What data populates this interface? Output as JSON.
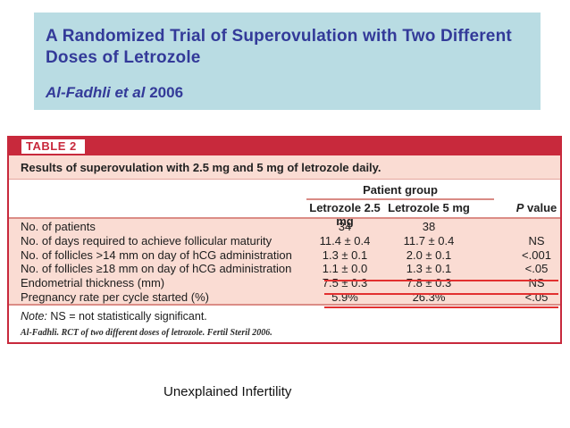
{
  "header": {
    "title_line1": "A Randomized Trial of Superovulation with Two Different",
    "title_line2": "Doses of Letrozole",
    "citation_authors": "Al-Fadhli et al",
    "citation_year": "2006",
    "bg_color": "#b9dce3",
    "text_color": "#333a99"
  },
  "table": {
    "label": "TABLE 2",
    "caption": "Results of superovulation with 2.5 mg and 5 mg of letrozole daily.",
    "group_header": "Patient group",
    "columns": [
      "Letrozole 2.5 mg",
      "Letrozole 5 mg"
    ],
    "p_column_italic": "P",
    "p_column_rest": " value",
    "rows": [
      {
        "label": "No. of patients",
        "letrozole25": "34",
        "letrozole5": "38",
        "p": ""
      },
      {
        "label": "No. of days required to achieve follicular maturity",
        "letrozole25": "11.4 ± 0.4",
        "letrozole5": "11.7 ± 0.4",
        "p": "NS"
      },
      {
        "label": "No. of follicles >14 mm on day of hCG administration",
        "letrozole25": "1.3 ± 0.1",
        "letrozole5": "2.0 ± 0.1",
        "p": "<.001"
      },
      {
        "label": "No. of follicles ≥18 mm on day of hCG administration",
        "letrozole25": "1.1 ± 0.0",
        "letrozole5": "1.3 ± 0.1",
        "p": "<.05"
      },
      {
        "label": "Endometrial thickness (mm)",
        "letrozole25": "7.5 ± 0.3",
        "letrozole5": "7.8 ± 0.3",
        "p": "NS"
      },
      {
        "label": "Pregnancy rate per cycle started (%)",
        "letrozole25": "5.9%",
        "letrozole5": "26.3%",
        "p": "<.05"
      }
    ],
    "note_label": "Note:",
    "note_text": " NS = not statistically significant.",
    "source": "Al-Fadhli. RCT of two different doses of letrozole. Fertil Steril 2006.",
    "colors": {
      "bar_red": "#c8293c",
      "row_pink": "#fadcd3",
      "separator_salmon": "#db8d86",
      "highlight_red": "#e23030"
    }
  },
  "bottom_caption": "Unexplained Infertility"
}
